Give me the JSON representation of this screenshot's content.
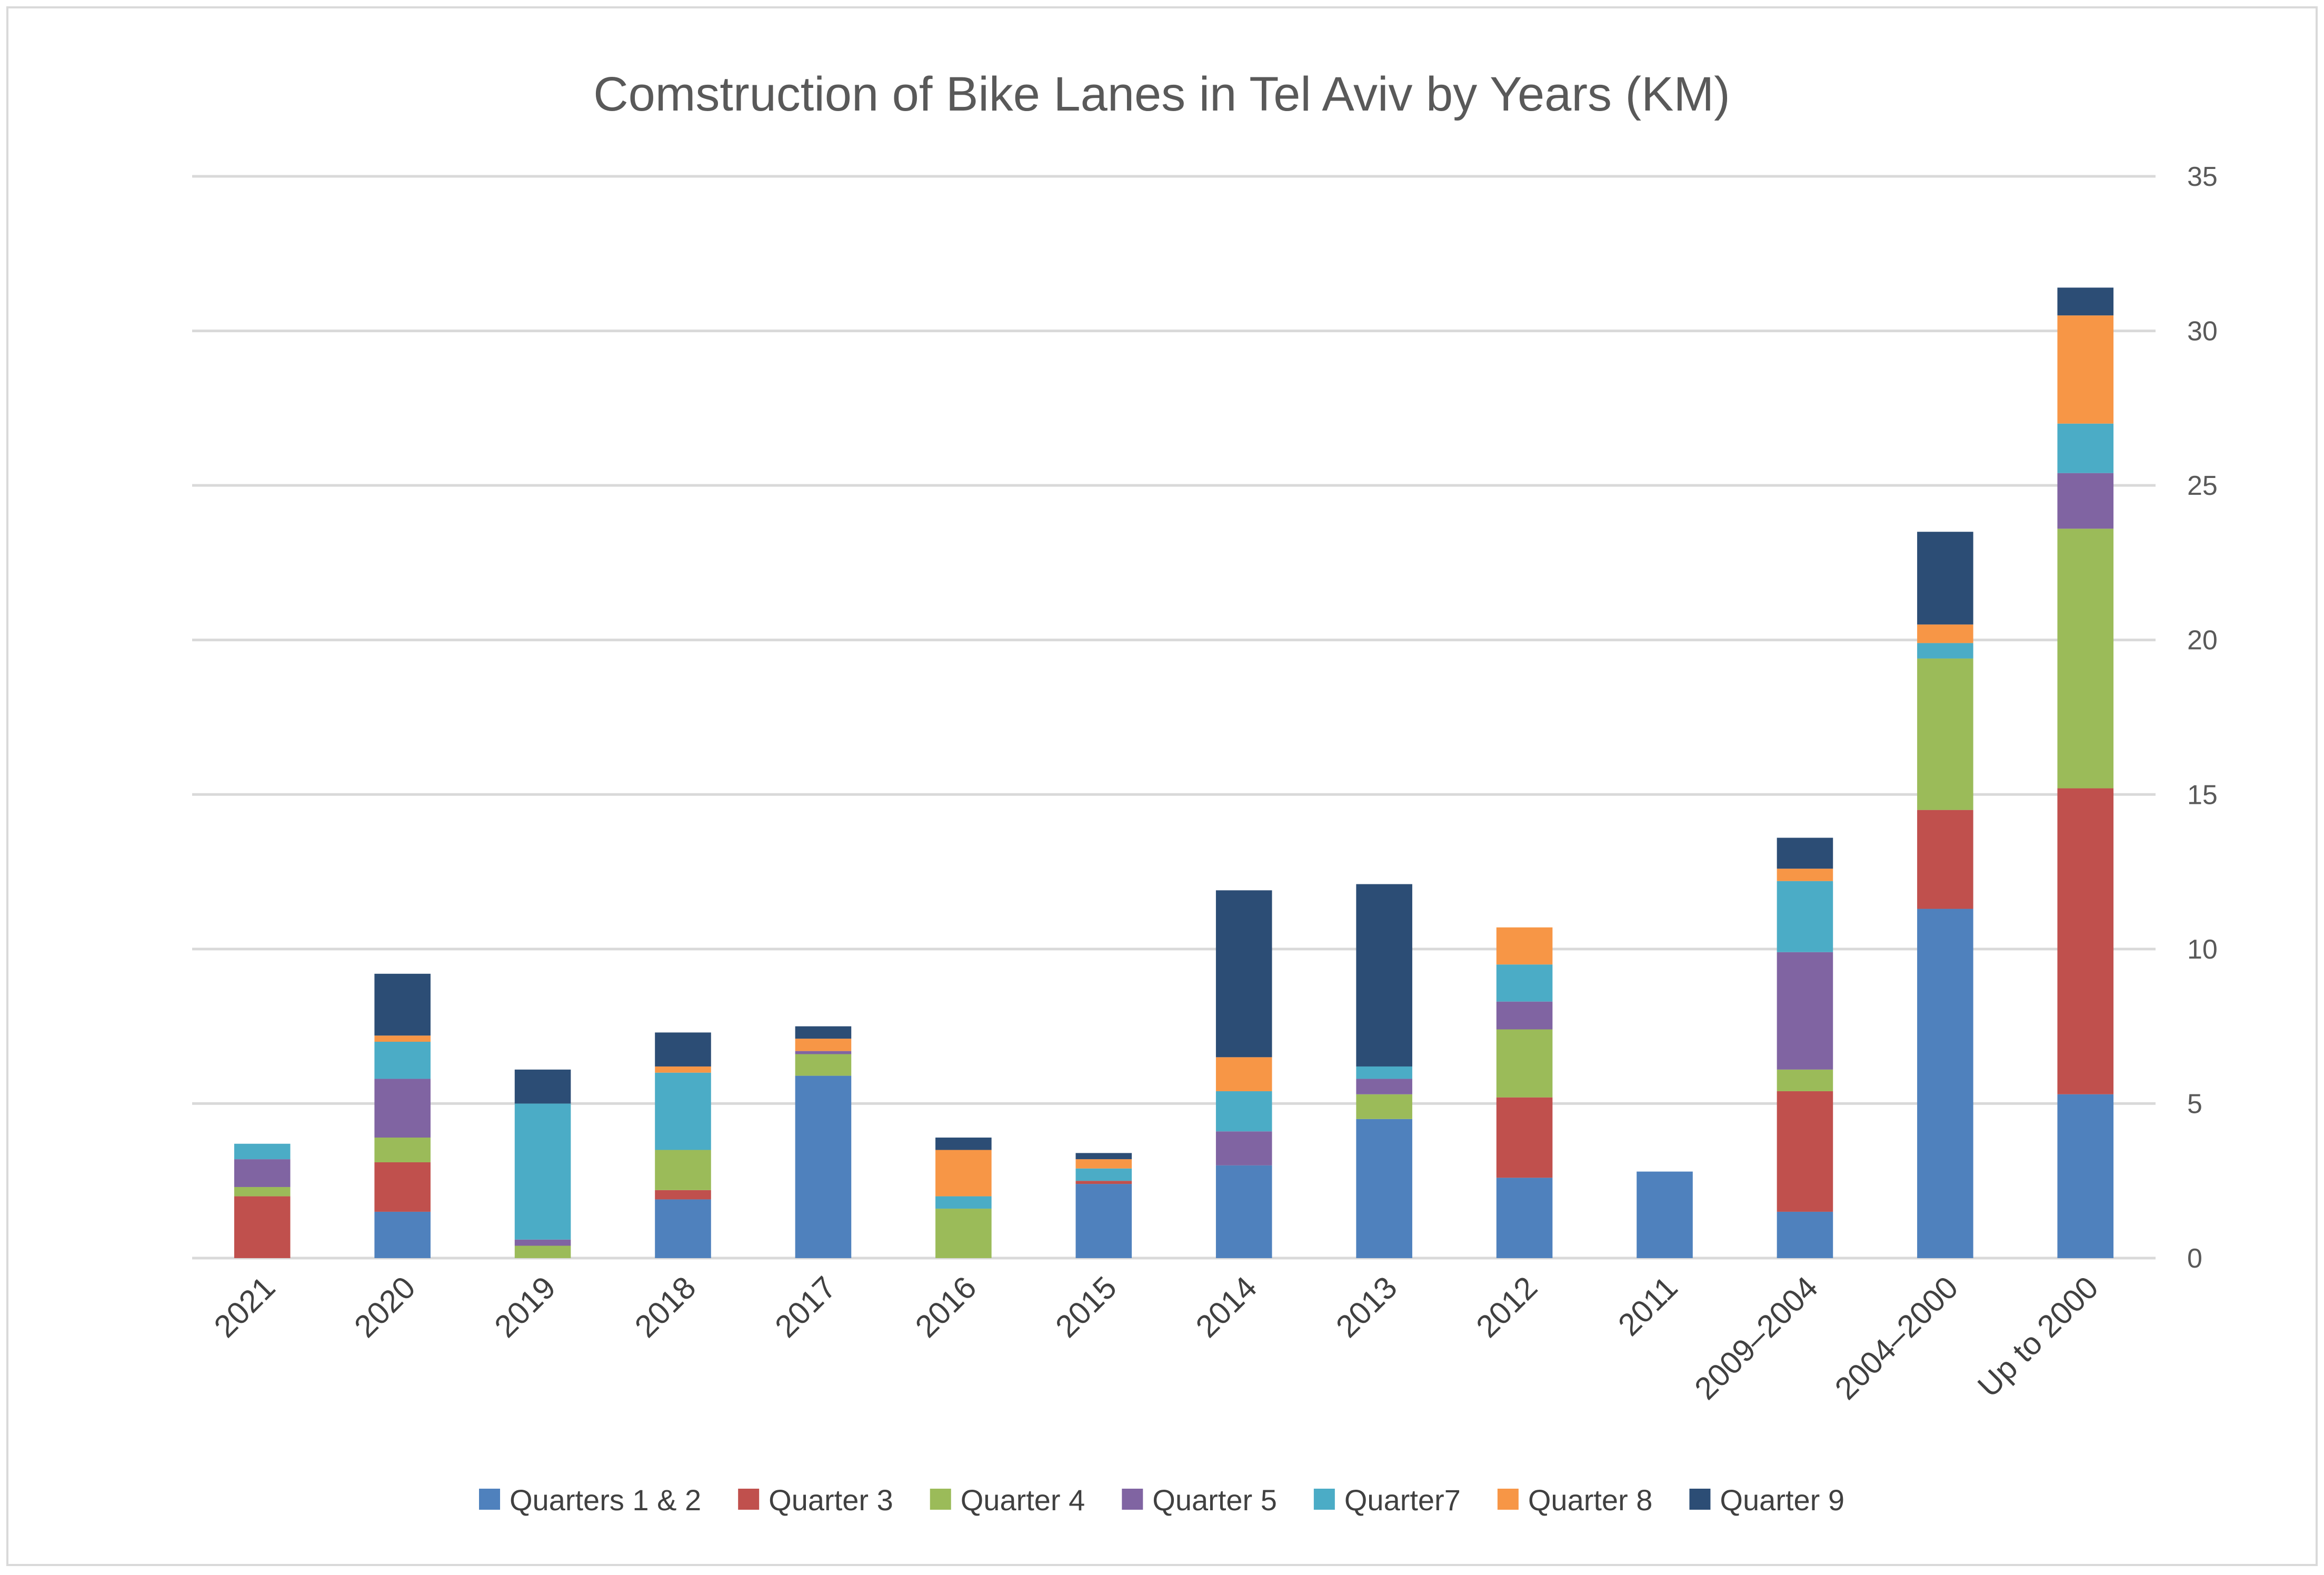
{
  "chart_data": {
    "type": "bar",
    "stacked": true,
    "title": "Comstruction of Bike Lanes in Tel Aviv by Years (KM)",
    "xlabel": "",
    "ylabel": "",
    "ylim": [
      0,
      35
    ],
    "yticks": [
      "0",
      "5",
      "10",
      "15",
      "20",
      "25",
      "30",
      "35"
    ],
    "y_axis_side": "right",
    "grid": true,
    "legend_position": "bottom",
    "categories": [
      "2021",
      "2020",
      "2019",
      "2018",
      "2017",
      "2016",
      "2015",
      "2014",
      "2013",
      "2012",
      "2011",
      "2009–2004",
      "2004–2000",
      "Up to 2000"
    ],
    "series": [
      {
        "name": "Quarters 1 & 2",
        "color": "#4F81BD",
        "values": [
          0,
          1.5,
          0,
          1.9,
          5.9,
          0,
          2.4,
          3.0,
          4.5,
          2.6,
          2.8,
          1.5,
          11.3,
          5.3
        ]
      },
      {
        "name": "Quarter 3",
        "color": "#C0504D",
        "values": [
          2.0,
          1.6,
          0,
          0.3,
          0,
          0,
          0.1,
          0,
          0,
          2.6,
          0,
          3.9,
          3.2,
          9.9
        ]
      },
      {
        "name": "Quarter 4",
        "color": "#9BBB59",
        "values": [
          0.3,
          0.8,
          0.4,
          1.3,
          0.7,
          1.6,
          0,
          0,
          0.8,
          2.2,
          0,
          0.7,
          4.9,
          8.4
        ]
      },
      {
        "name": "Quarter 5",
        "color": "#8064A2",
        "values": [
          0.9,
          1.9,
          0.2,
          0,
          0.1,
          0,
          0,
          1.1,
          0.5,
          0.9,
          0,
          3.8,
          0,
          1.8
        ]
      },
      {
        "name": "Quarter7",
        "color": "#4BACC6",
        "values": [
          0.5,
          1.2,
          4.4,
          2.5,
          0,
          0.4,
          0.4,
          1.3,
          0.4,
          1.2,
          0,
          2.3,
          0.5,
          1.6
        ]
      },
      {
        "name": "Quarter 8",
        "color": "#F79646",
        "values": [
          0,
          0.2,
          0,
          0.2,
          0.4,
          1.5,
          0.3,
          1.1,
          0,
          1.2,
          0,
          0.4,
          0.6,
          3.5
        ]
      },
      {
        "name": "Quarter 9",
        "color": "#2C4D75",
        "values": [
          0,
          2.0,
          1.1,
          1.1,
          0.4,
          0.4,
          0.2,
          5.4,
          5.9,
          0,
          0,
          1.0,
          3.0,
          0.9
        ]
      }
    ]
  }
}
